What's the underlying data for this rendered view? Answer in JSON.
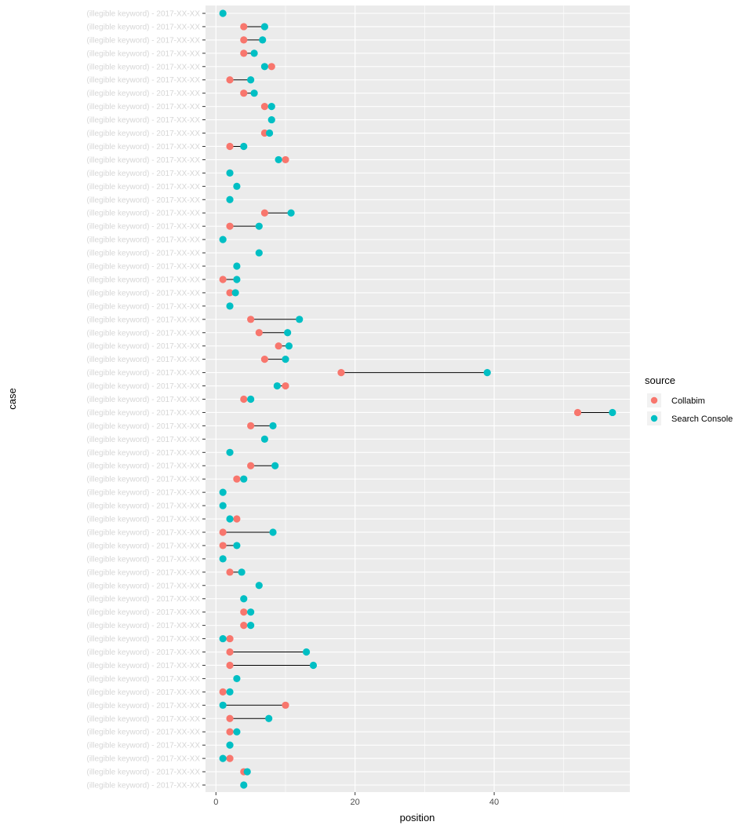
{
  "chart_data": {
    "type": "dumbbell",
    "xlabel": "position",
    "ylabel": "case",
    "xlim": [
      -1.5,
      59.5
    ],
    "xticks": [
      0,
      20,
      40
    ],
    "colors": {
      "panel": "#ebebeb",
      "grid_major": "#ffffff",
      "collabim": "#f8766d",
      "search_console": "#00bfc4",
      "segment": "#000000"
    },
    "legend": {
      "title": "source",
      "placement": "right",
      "entries": [
        {
          "name": "Collabim",
          "key": "collabim"
        },
        {
          "name": "Search Console",
          "key": "search_console"
        }
      ]
    },
    "case_label_text": "(illegible keyword) - 2017-XX-XX",
    "rows": [
      {
        "collabim": null,
        "search_console": 1
      },
      {
        "collabim": 4,
        "search_console": 7
      },
      {
        "collabim": 4,
        "search_console": 6.7
      },
      {
        "collabim": 4,
        "search_console": 5.5
      },
      {
        "collabim": 8,
        "search_console": 7
      },
      {
        "collabim": 2,
        "search_console": 5
      },
      {
        "collabim": 4,
        "search_console": 5.5
      },
      {
        "collabim": 7,
        "search_console": 8
      },
      {
        "collabim": null,
        "search_console": 8
      },
      {
        "collabim": 7,
        "search_console": 7.7
      },
      {
        "collabim": 2,
        "search_console": 4
      },
      {
        "collabim": 10,
        "search_console": 9
      },
      {
        "collabim": null,
        "search_console": 2
      },
      {
        "collabim": null,
        "search_console": 3
      },
      {
        "collabim": null,
        "search_console": 2
      },
      {
        "collabim": 7,
        "search_console": 10.8
      },
      {
        "collabim": 2,
        "search_console": 6.2
      },
      {
        "collabim": null,
        "search_console": 1
      },
      {
        "collabim": null,
        "search_console": 6.2
      },
      {
        "collabim": null,
        "search_console": 3
      },
      {
        "collabim": 1,
        "search_console": 3
      },
      {
        "collabim": 2,
        "search_console": 2.8
      },
      {
        "collabim": null,
        "search_console": 2
      },
      {
        "collabim": 5,
        "search_console": 12
      },
      {
        "collabim": 6.2,
        "search_console": 10.3
      },
      {
        "collabim": 9,
        "search_console": 10.5
      },
      {
        "collabim": 7,
        "search_console": 10
      },
      {
        "collabim": 18,
        "search_console": 39
      },
      {
        "collabim": 10,
        "search_console": 8.8
      },
      {
        "collabim": 4,
        "search_console": 5
      },
      {
        "collabim": 52,
        "search_console": 57
      },
      {
        "collabim": 5,
        "search_console": 8.2
      },
      {
        "collabim": null,
        "search_console": 7
      },
      {
        "collabim": null,
        "search_console": 2
      },
      {
        "collabim": 5,
        "search_console": 8.5
      },
      {
        "collabim": 3,
        "search_console": 4
      },
      {
        "collabim": null,
        "search_console": 1
      },
      {
        "collabim": null,
        "search_console": 1
      },
      {
        "collabim": 3,
        "search_console": 2
      },
      {
        "collabim": 1,
        "search_console": 8.2
      },
      {
        "collabim": 1,
        "search_console": 3
      },
      {
        "collabim": null,
        "search_console": 1
      },
      {
        "collabim": 2,
        "search_console": 3.7
      },
      {
        "collabim": null,
        "search_console": 6.2
      },
      {
        "collabim": null,
        "search_console": 4
      },
      {
        "collabim": 4,
        "search_console": 5
      },
      {
        "collabim": 4,
        "search_console": 5
      },
      {
        "collabim": 2,
        "search_console": 1
      },
      {
        "collabim": 2,
        "search_console": 13
      },
      {
        "collabim": 2,
        "search_console": 14
      },
      {
        "collabim": null,
        "search_console": 3
      },
      {
        "collabim": 1,
        "search_console": 2
      },
      {
        "collabim": 10,
        "search_console": 1
      },
      {
        "collabim": 2,
        "search_console": 7.6
      },
      {
        "collabim": 2,
        "search_console": 3
      },
      {
        "collabim": null,
        "search_console": 2
      },
      {
        "collabim": 2,
        "search_console": 1
      },
      {
        "collabim": 4,
        "search_console": 4.5
      },
      {
        "collabim": null,
        "search_console": 4
      }
    ]
  }
}
